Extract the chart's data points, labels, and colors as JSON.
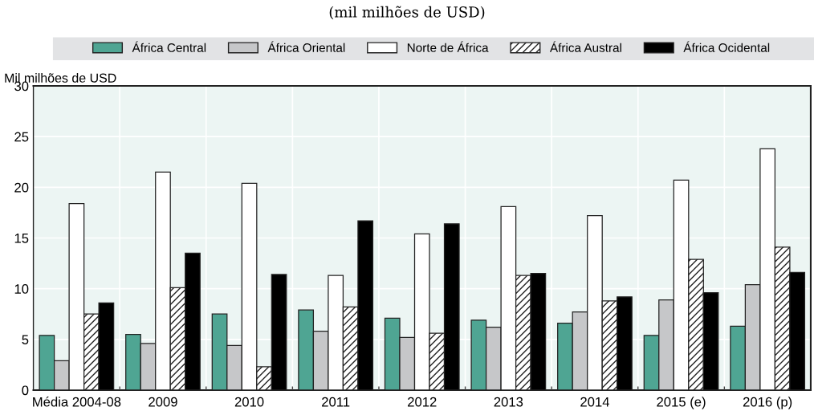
{
  "chart_data": {
    "type": "bar",
    "subtitle": "(mil milhões de USD)",
    "ylabel": "Mil milhões de USD",
    "categories": [
      "Média 2004-08",
      "2009",
      "2010",
      "2011",
      "2012",
      "2013",
      "2014",
      "2015 (e)",
      "2016 (p)"
    ],
    "series": [
      {
        "name": "África Central",
        "color": "#4fa593",
        "values": [
          5.4,
          5.5,
          7.5,
          7.9,
          7.1,
          6.9,
          6.6,
          5.4,
          6.3
        ]
      },
      {
        "name": "África Oriental",
        "color": "#c6c7c9",
        "values": [
          2.9,
          4.6,
          4.4,
          5.8,
          5.2,
          6.2,
          7.7,
          8.9,
          10.4
        ]
      },
      {
        "name": "Norte de África",
        "color": "#ffffff",
        "values": [
          18.4,
          21.5,
          20.4,
          11.3,
          15.4,
          18.1,
          17.2,
          20.7,
          23.8
        ]
      },
      {
        "name": "África Austral",
        "color": "#222222",
        "values": [
          7.5,
          10.1,
          2.3,
          8.2,
          5.6,
          11.3,
          8.8,
          12.9,
          14.1
        ]
      },
      {
        "name": "África Ocidental",
        "color": "#000000",
        "values": [
          8.6,
          13.5,
          11.4,
          16.7,
          16.4,
          11.5,
          9.2,
          9.6,
          11.6
        ]
      }
    ],
    "ylim": [
      0,
      30
    ],
    "yticks": [
      0,
      5,
      10,
      15,
      20,
      25,
      30
    ],
    "grid": true,
    "legend": "top"
  }
}
